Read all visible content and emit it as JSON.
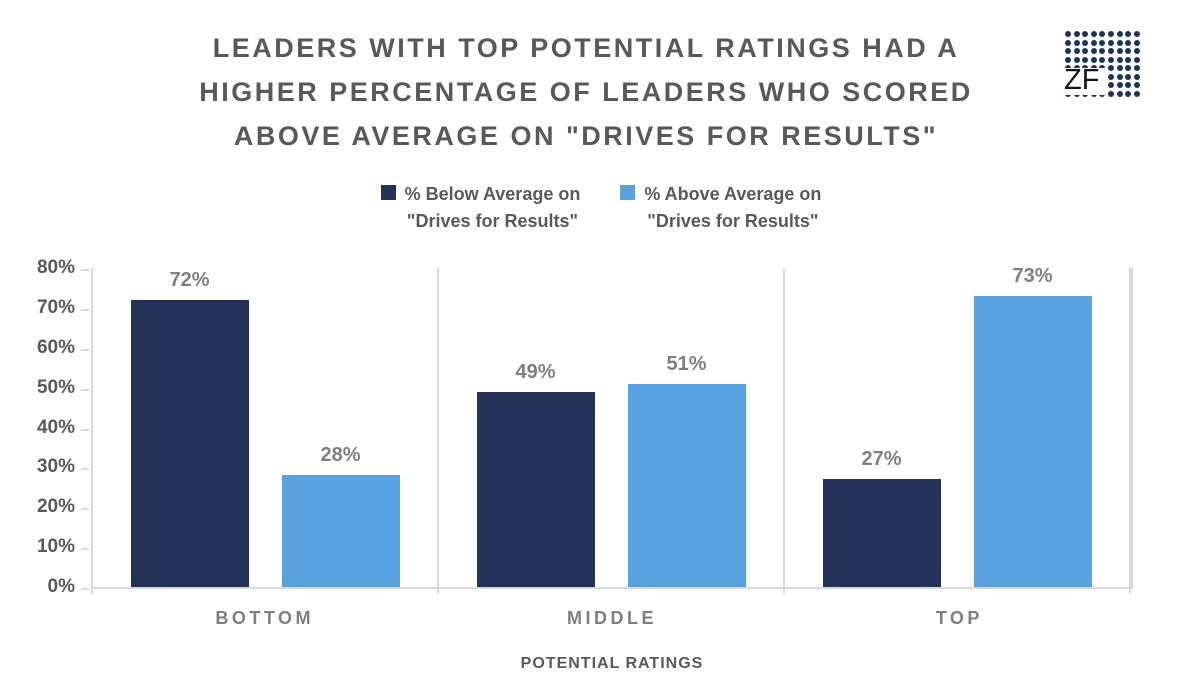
{
  "title": {
    "line1": "LEADERS WITH TOP POTENTIAL RATINGS HAD A",
    "line2": "HIGHER PERCENTAGE OF LEADERS WHO SCORED",
    "line3": "ABOVE AVERAGE ON \"DRIVES FOR RESULTS\""
  },
  "logo": {
    "text": "ZF",
    "dot_color": "#1f3356",
    "dot_rows": 8,
    "dot_cols": 9
  },
  "legend": [
    {
      "line1": "% Below Average on",
      "line2": "\"Drives for Results\"",
      "color": "#233256"
    },
    {
      "line1": "% Above Average on",
      "line2": "\"Drives for Results\"",
      "color": "#5aa2de"
    }
  ],
  "chart_data": {
    "type": "bar",
    "categories": [
      "BOTTOM",
      "MIDDLE",
      "TOP"
    ],
    "series": [
      {
        "name": "% Below Average on \"Drives for Results\"",
        "color": "#233256",
        "values": [
          72,
          49,
          27
        ]
      },
      {
        "name": "% Above Average on \"Drives for Results\"",
        "color": "#5aa2de",
        "values": [
          28,
          51,
          73
        ]
      }
    ],
    "title": "LEADERS WITH TOP POTENTIAL RATINGS HAD A HIGHER PERCENTAGE OF LEADERS WHO SCORED ABOVE AVERAGE ON \"DRIVES FOR RESULTS\"",
    "xlabel": "POTENTIAL RATINGS",
    "ylabel": "",
    "ylim": [
      0,
      80
    ],
    "ytick_step": 10,
    "ytick_suffix": "%",
    "data_labels": true,
    "data_label_suffix": "%",
    "grid": "vertical-category-separators-only",
    "legend_position": "top",
    "colors": {
      "axis_line": "#d9d9d9",
      "title_text": "#595959",
      "data_label_text": "#7f7f7f",
      "category_text": "#7f7f7f"
    }
  }
}
